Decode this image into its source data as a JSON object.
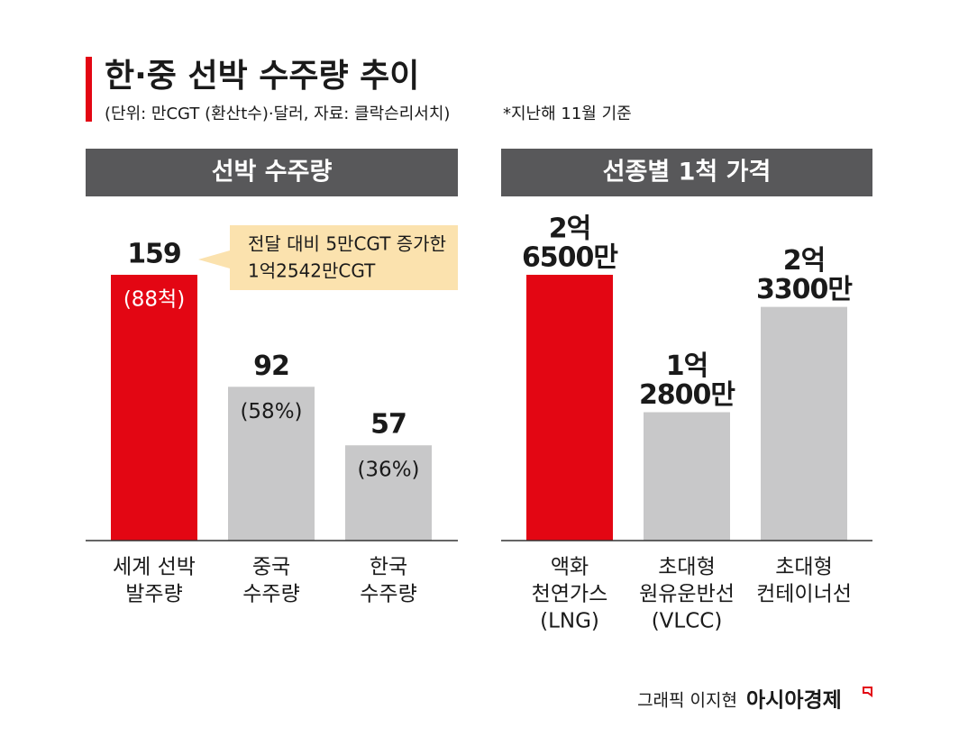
{
  "title": "한·중 선박 수주량 추이",
  "subtitle": "(단위: 만CGT (환산t수)·달러, 자료: 클락슨리서치)",
  "note": "*지난해 11월 기준",
  "credit": {
    "author": "그래픽 이지현",
    "brand": "아시아경제"
  },
  "chart_data": [
    {
      "type": "bar",
      "title": "선박 수주량",
      "categories": [
        [
          "세계 선박",
          "발주량"
        ],
        [
          "중국",
          "수주량"
        ],
        [
          "한국",
          "수주량"
        ]
      ],
      "values": [
        159,
        92,
        57
      ],
      "sub_labels": [
        "(88척)",
        "(58%)",
        "(36%)"
      ],
      "colors": [
        "#e30613",
        "#c8c8c9",
        "#c8c8c9"
      ],
      "annotation": [
        "전달 대비 5만CGT 증가한",
        "1억2542만CGT"
      ]
    },
    {
      "type": "bar",
      "title": "선종별 1척 가격",
      "categories": [
        [
          "액화",
          "천연가스",
          "(LNG)"
        ],
        [
          "초대형",
          "원유운반선",
          "(VLCC)"
        ],
        [
          "초대형",
          "컨테이너선"
        ]
      ],
      "values": [
        265000000,
        128000000,
        233000000
      ],
      "value_labels": [
        [
          "2억",
          "6500만"
        ],
        [
          "1억",
          "2800만"
        ],
        [
          "2억",
          "3300만"
        ]
      ],
      "colors": [
        "#e30613",
        "#c8c8c9",
        "#c8c8c9"
      ]
    }
  ]
}
